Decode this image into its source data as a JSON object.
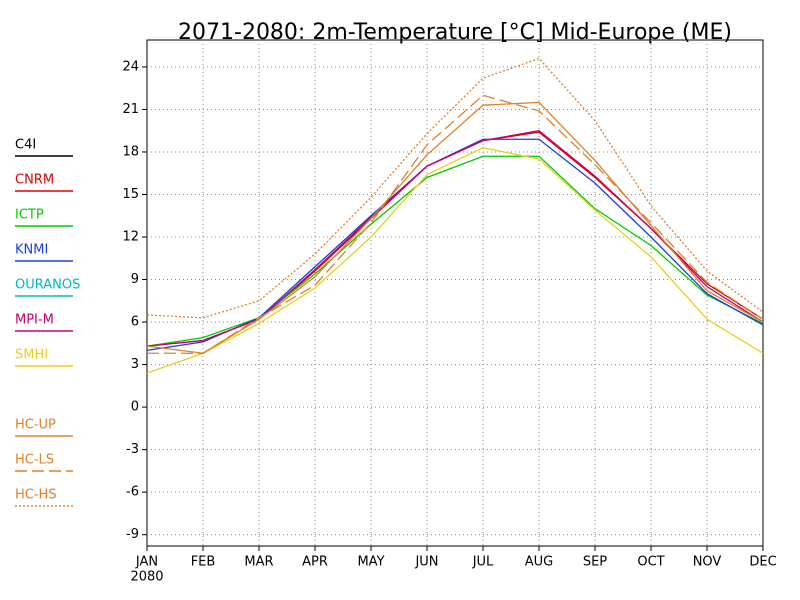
{
  "chart_data": {
    "type": "line",
    "title": "2071-2080: 2m-Temperature [°C] Mid-Europe (ME)",
    "categories": [
      "JAN",
      "FEB",
      "MAR",
      "APR",
      "MAY",
      "JUN",
      "JUL",
      "AUG",
      "SEP",
      "OCT",
      "NOV",
      "DEC"
    ],
    "year_label": "2080",
    "ylim": [
      -9.8,
      25.9
    ],
    "yticks": [
      24,
      21,
      18,
      15,
      12,
      9,
      6,
      3,
      0,
      -3,
      -6,
      -9
    ],
    "grid": true,
    "legend": "left",
    "series": [
      {
        "name": "C4I",
        "color": "#000000",
        "dash": "solid",
        "values": [
          null,
          null,
          null,
          null,
          null,
          null,
          null,
          null,
          null,
          null,
          null,
          null
        ]
      },
      {
        "name": "CNRM",
        "color": "#e00000",
        "dash": "solid",
        "values": [
          4.3,
          4.7,
          6.2,
          9.6,
          13.3,
          17.0,
          18.8,
          19.4,
          16.2,
          12.6,
          8.7,
          6.2
        ]
      },
      {
        "name": "ICTP",
        "color": "#00cc00",
        "dash": "solid",
        "values": [
          4.3,
          4.9,
          6.3,
          9.4,
          12.9,
          16.2,
          17.7,
          17.7,
          14.0,
          11.4,
          7.9,
          5.9
        ]
      },
      {
        "name": "KNMI",
        "color": "#1a3fe0",
        "dash": "solid",
        "values": [
          4.0,
          4.6,
          6.3,
          9.9,
          13.5,
          17.0,
          18.9,
          18.9,
          15.8,
          12.0,
          8.0,
          5.8
        ]
      },
      {
        "name": "OURANOS",
        "color": "#00b8c8",
        "dash": "solid",
        "values": [
          null,
          null,
          null,
          null,
          null,
          null,
          null,
          null,
          null,
          null,
          null,
          null
        ]
      },
      {
        "name": "MPI-M",
        "color": "#c8006e",
        "dash": "solid",
        "values": [
          4.3,
          4.7,
          6.2,
          9.7,
          13.4,
          17.0,
          18.8,
          19.5,
          16.3,
          12.6,
          8.5,
          6.0
        ]
      },
      {
        "name": "SMHI",
        "color": "#e8d020",
        "dash": "solid",
        "values": [
          2.4,
          3.8,
          5.9,
          8.4,
          12.0,
          16.4,
          18.3,
          17.5,
          13.9,
          10.6,
          6.2,
          3.8
        ]
      },
      {
        "name": "HC-UP",
        "color": "#e0802a",
        "dash": "solid",
        "values": [
          4.3,
          3.8,
          6.2,
          9.2,
          13.3,
          17.8,
          21.3,
          21.5,
          17.4,
          12.8,
          8.2,
          6.0
        ]
      },
      {
        "name": "HC-LS",
        "color": "#e0802a",
        "dash": "dash",
        "values": [
          3.8,
          3.8,
          6.3,
          8.6,
          13.0,
          18.5,
          22.0,
          20.9,
          17.1,
          13.0,
          8.8,
          6.2
        ]
      },
      {
        "name": "HC-HS",
        "color": "#e0802a",
        "dash": "dot",
        "values": [
          6.5,
          6.3,
          7.5,
          10.8,
          14.8,
          19.3,
          23.2,
          24.6,
          20.2,
          14.2,
          9.6,
          6.7
        ]
      }
    ]
  }
}
